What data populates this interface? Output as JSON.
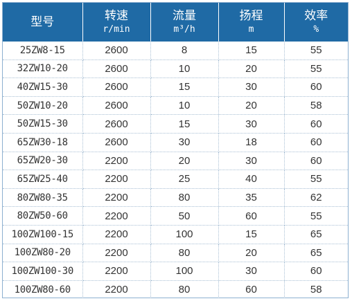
{
  "table": {
    "headers": [
      {
        "label": "型号",
        "unit": ""
      },
      {
        "label": "转速",
        "unit": "r/min"
      },
      {
        "label": "流量",
        "unit": "m³/h"
      },
      {
        "label": "扬程",
        "unit": "m"
      },
      {
        "label": "效率",
        "unit": "%"
      }
    ],
    "rows": [
      [
        "25ZW8-15",
        "2600",
        "8",
        "15",
        "55"
      ],
      [
        "32ZW10-20",
        "2600",
        "10",
        "20",
        "55"
      ],
      [
        "40ZW15-30",
        "2600",
        "15",
        "30",
        "60"
      ],
      [
        "50ZW10-20",
        "2600",
        "10",
        "20",
        "58"
      ],
      [
        "50ZW15-30",
        "2600",
        "15",
        "30",
        "60"
      ],
      [
        "65ZW30-18",
        "2600",
        "30",
        "18",
        "60"
      ],
      [
        "65ZW20-30",
        "2200",
        "20",
        "30",
        "60"
      ],
      [
        "65ZW25-40",
        "2200",
        "25",
        "40",
        "55"
      ],
      [
        "80ZW80-35",
        "2200",
        "80",
        "35",
        "62"
      ],
      [
        "80ZW50-60",
        "2200",
        "50",
        "60",
        "55"
      ],
      [
        "100ZW100-15",
        "2200",
        "100",
        "15",
        "65"
      ],
      [
        "100ZW80-20",
        "2200",
        "80",
        "20",
        "65"
      ],
      [
        "100ZW100-30",
        "2200",
        "100",
        "30",
        "60"
      ],
      [
        "100ZW80-60",
        "2200",
        "80",
        "60",
        "58"
      ]
    ]
  },
  "colors": {
    "header_bg": "#1f6aa5",
    "header_text": "#ffffff",
    "body_text": "#333333",
    "border": "#a8bfd4"
  }
}
